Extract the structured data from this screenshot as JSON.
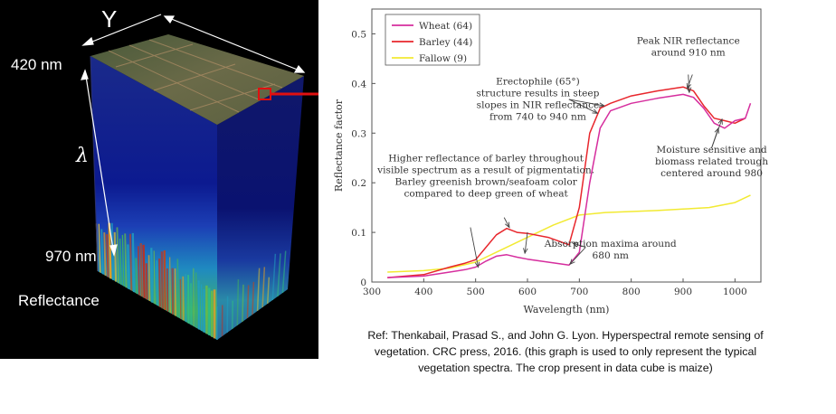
{
  "cube": {
    "axis_y_label": "Y",
    "wavelength_top": "420 nm",
    "wavelength_axis_label": "λ",
    "wavelength_bottom": "970 nm",
    "caption": "Reflectance"
  },
  "reference_note": "Ref: Thenkabail, Prasad S., and John G. Lyon. Hyperspectral remote sensing of vegetation. CRC press, 2016. (this graph is used to only represent the typical vegetation spectra. The crop present in data cube is maize)",
  "colors": {
    "wheat": "#d62e9e",
    "barley": "#e8262c",
    "fallow": "#f2ea32",
    "arrow": "#e01010"
  },
  "chart_data": {
    "type": "line",
    "xlabel": "Wavelength (nm)",
    "ylabel": "Reflectance factor",
    "xlim": [
      300,
      1050
    ],
    "ylim": [
      0,
      0.55
    ],
    "xticks": [
      "300",
      "400",
      "500",
      "600",
      "700",
      "800",
      "900",
      "1000"
    ],
    "yticks": [
      "0",
      "0.1",
      "0.2",
      "0.3",
      "0.4",
      "0.5"
    ],
    "legend_position": "top-left",
    "series": [
      {
        "name": "Wheat (64)",
        "color": "#d62e9e",
        "x": [
          330,
          400,
          450,
          480,
          500,
          520,
          540,
          560,
          580,
          600,
          640,
          680,
          700,
          720,
          740,
          760,
          800,
          850,
          900,
          920,
          940,
          960,
          980,
          1000,
          1020,
          1030
        ],
        "y": [
          0.009,
          0.012,
          0.02,
          0.025,
          0.03,
          0.042,
          0.052,
          0.055,
          0.05,
          0.046,
          0.04,
          0.034,
          0.06,
          0.2,
          0.31,
          0.345,
          0.36,
          0.37,
          0.378,
          0.372,
          0.35,
          0.32,
          0.31,
          0.325,
          0.33,
          0.36
        ]
      },
      {
        "name": "Barley (44)",
        "color": "#e8262c",
        "x": [
          330,
          400,
          450,
          480,
          500,
          520,
          540,
          560,
          580,
          600,
          640,
          680,
          700,
          720,
          740,
          760,
          800,
          850,
          900,
          920,
          940,
          960,
          980,
          1000,
          1020
        ],
        "y": [
          0.009,
          0.015,
          0.03,
          0.038,
          0.045,
          0.07,
          0.095,
          0.108,
          0.1,
          0.098,
          0.09,
          0.075,
          0.15,
          0.3,
          0.35,
          0.36,
          0.375,
          0.385,
          0.393,
          0.385,
          0.355,
          0.33,
          0.325,
          0.32,
          0.33
        ]
      },
      {
        "name": "Fallow (9)",
        "color": "#f2ea32",
        "x": [
          330,
          400,
          450,
          500,
          550,
          600,
          650,
          700,
          750,
          800,
          850,
          900,
          950,
          1000,
          1030
        ],
        "y": [
          0.02,
          0.023,
          0.028,
          0.04,
          0.065,
          0.09,
          0.115,
          0.135,
          0.14,
          0.142,
          0.144,
          0.147,
          0.15,
          0.16,
          0.175
        ]
      }
    ],
    "annotations": [
      {
        "lines": [
          "Peak NIR reflectance",
          "around 910 nm"
        ]
      },
      {
        "lines": [
          "Erectophile (65°)",
          "structure results in steep",
          "slopes in NIR reflectance",
          "from 740 to 940 nm"
        ]
      },
      {
        "lines": [
          "Moisture sensitive and",
          "biomass related trough",
          "centered around 980"
        ]
      },
      {
        "lines": [
          "Higher reflectance of barley throughout",
          "visible spectrum as a result of pigmentation.",
          "Barley greenish brown/seafoam color",
          "compared to deep green of wheat"
        ]
      },
      {
        "lines": [
          "Absorption maxima around",
          "680 nm"
        ]
      }
    ]
  }
}
